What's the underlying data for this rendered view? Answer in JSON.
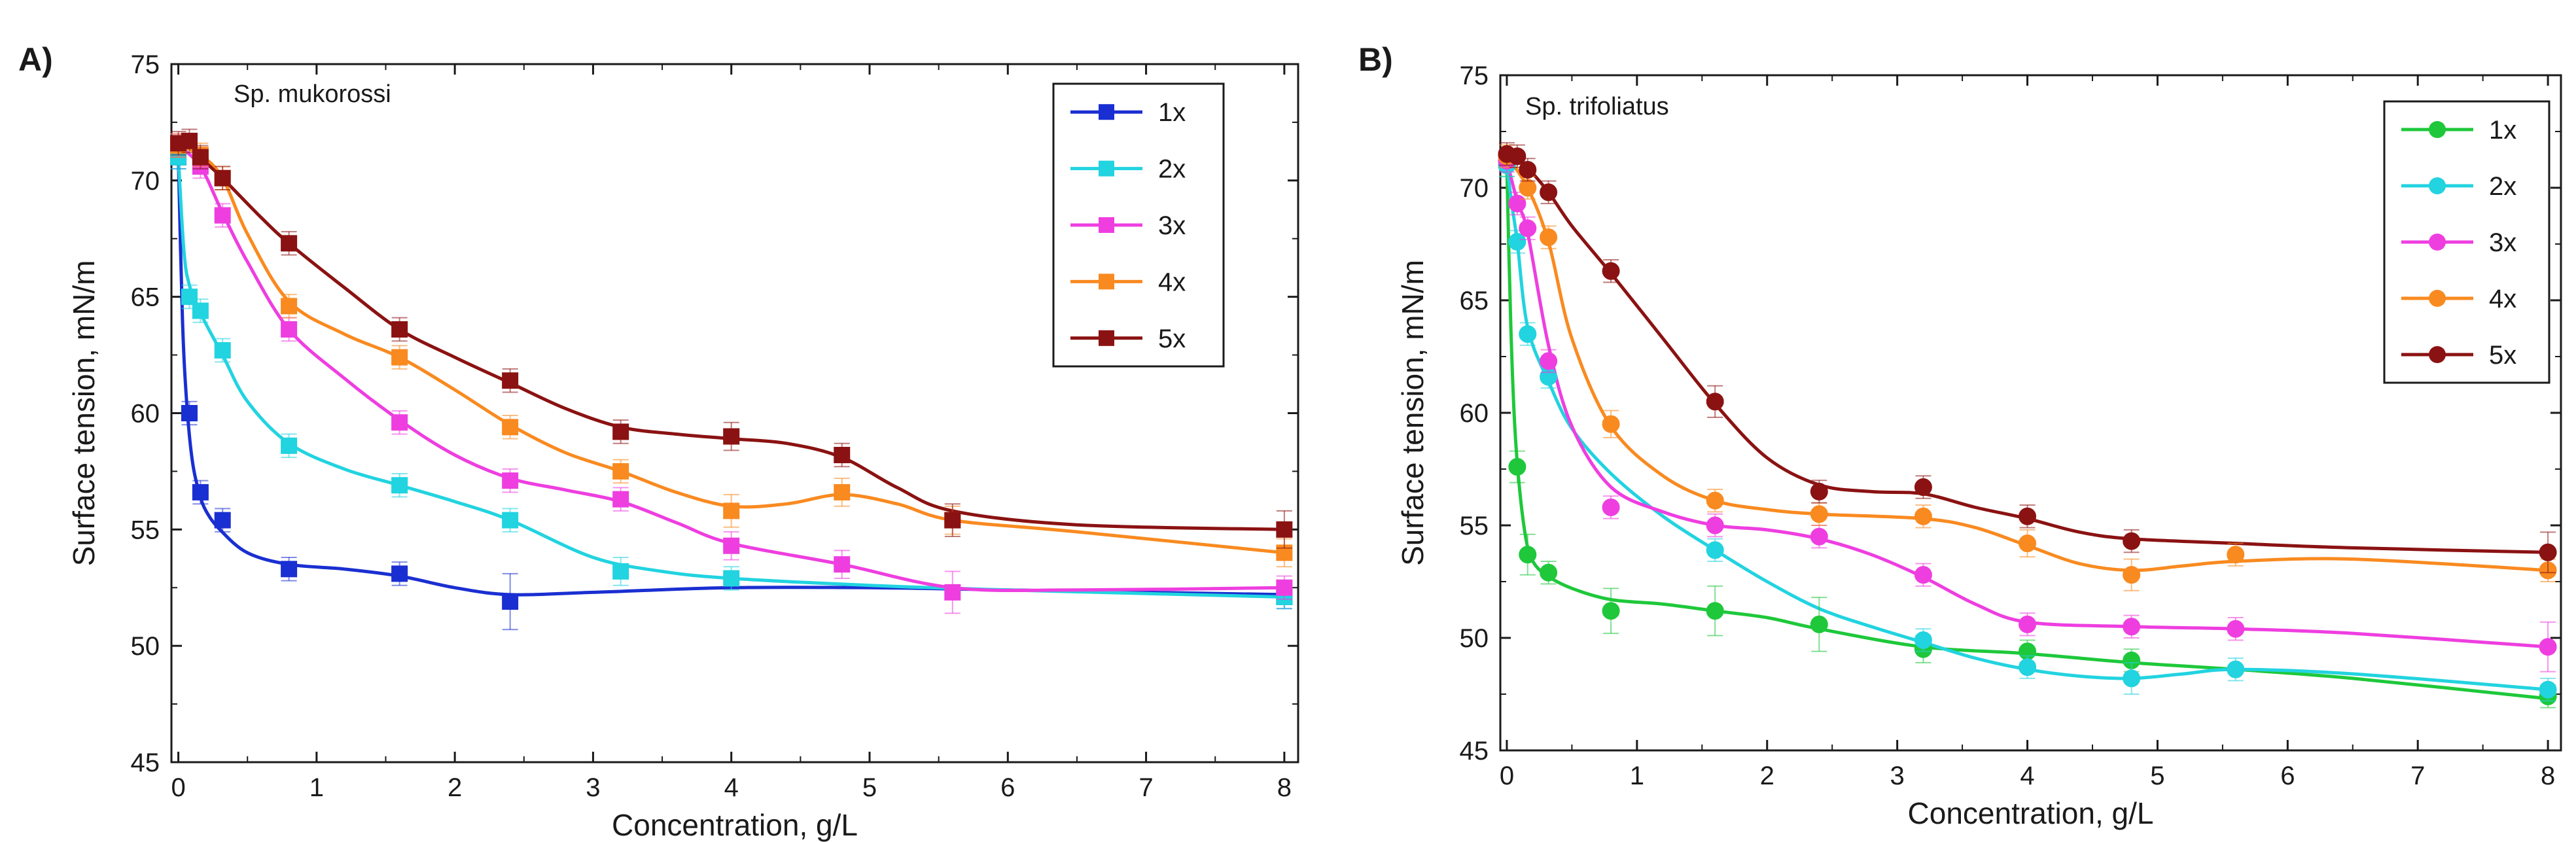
{
  "chart_data": [
    {
      "panel_label": "A)",
      "type": "line",
      "title": "Sp. mukorossi",
      "xlabel": "Concentration, g/L",
      "ylabel": "Surface tension, mN/m",
      "xlim": [
        -0.05,
        8.1
      ],
      "ylim": [
        45,
        75
      ],
      "xticks": [
        0,
        1,
        2,
        3,
        4,
        5,
        6,
        7,
        8
      ],
      "yticks": [
        45,
        50,
        55,
        60,
        65,
        70,
        75
      ],
      "marker": "square",
      "legend_position": "top-right",
      "series": [
        {
          "name": "1x",
          "color": "#1a2fd1",
          "x": [
            0,
            0.08,
            0.16,
            0.32,
            0.8,
            1.6,
            2.4,
            8.0
          ],
          "y": [
            71.0,
            60.0,
            56.6,
            55.4,
            53.3,
            53.1,
            51.9,
            52.1
          ],
          "err": [
            0.5,
            0.5,
            0.5,
            0.5,
            0.5,
            0.5,
            1.2,
            0.5
          ]
        },
        {
          "name": "2x",
          "color": "#22d3e0",
          "x": [
            0,
            0.08,
            0.16,
            0.32,
            0.8,
            1.6,
            2.4,
            3.2,
            4.0,
            8.0
          ],
          "y": [
            71.0,
            65.0,
            64.4,
            62.7,
            58.6,
            56.9,
            55.4,
            53.2,
            52.9,
            52.1
          ],
          "err": [
            0.5,
            0.5,
            0.5,
            0.5,
            0.5,
            0.5,
            0.5,
            0.6,
            0.5,
            0.5
          ]
        },
        {
          "name": "3x",
          "color": "#ee3ee0",
          "x": [
            0,
            0.16,
            0.32,
            0.8,
            1.6,
            2.4,
            3.2,
            4.0,
            4.8,
            5.6,
            8.0
          ],
          "y": [
            71.5,
            70.6,
            68.5,
            63.6,
            59.6,
            57.1,
            56.3,
            54.3,
            53.5,
            52.3,
            52.5
          ],
          "err": [
            0.5,
            0.5,
            0.5,
            0.5,
            0.5,
            0.5,
            0.5,
            0.6,
            0.6,
            0.9,
            0.5
          ]
        },
        {
          "name": "4x",
          "color": "#f98a20",
          "x": [
            0,
            0.16,
            0.32,
            0.8,
            1.6,
            2.4,
            3.2,
            4.0,
            4.8,
            5.6,
            8.0
          ],
          "y": [
            71.5,
            71.1,
            70.1,
            64.6,
            62.4,
            59.4,
            57.5,
            55.8,
            56.6,
            55.4,
            54.0
          ],
          "err": [
            0.5,
            0.5,
            0.5,
            0.5,
            0.5,
            0.5,
            0.5,
            0.7,
            0.6,
            0.6,
            0.6
          ]
        },
        {
          "name": "5x",
          "color": "#8b1212",
          "x": [
            0,
            0.08,
            0.16,
            0.32,
            0.8,
            1.6,
            2.4,
            3.2,
            4.0,
            4.8,
            5.6,
            8.0
          ],
          "y": [
            71.6,
            71.7,
            71.0,
            70.1,
            67.3,
            63.6,
            61.4,
            59.2,
            59.0,
            58.2,
            55.4,
            55.0
          ],
          "err": [
            0.5,
            0.5,
            0.5,
            0.5,
            0.5,
            0.5,
            0.5,
            0.5,
            0.6,
            0.5,
            0.7,
            0.8
          ]
        }
      ],
      "curves": [
        {
          "x": [
            0,
            0.03,
            0.06,
            0.1,
            0.15,
            0.2,
            0.3,
            0.5,
            0.8,
            1.2,
            1.6,
            2.0,
            2.4,
            3.0,
            4.0,
            5.0,
            6.0,
            8.0
          ],
          "y": [
            71.0,
            64.0,
            60.5,
            58.0,
            56.6,
            55.8,
            55.0,
            54.0,
            53.5,
            53.3,
            53.0,
            52.5,
            52.2,
            52.3,
            52.5,
            52.5,
            52.4,
            52.2
          ]
        },
        {
          "x": [
            0,
            0.04,
            0.08,
            0.16,
            0.32,
            0.5,
            0.8,
            1.2,
            1.6,
            2.0,
            2.4,
            3.0,
            3.5,
            4.0,
            5.0,
            6.0,
            8.0
          ],
          "y": [
            71.0,
            67.0,
            65.5,
            64.3,
            62.5,
            60.5,
            58.7,
            57.6,
            56.9,
            56.2,
            55.4,
            53.8,
            53.2,
            52.9,
            52.6,
            52.4,
            52.1
          ]
        },
        {
          "x": [
            0,
            0.16,
            0.32,
            0.5,
            0.8,
            1.2,
            1.6,
            2.0,
            2.4,
            2.8,
            3.2,
            3.6,
            4.0,
            4.8,
            5.6,
            6.5,
            8.0
          ],
          "y": [
            71.5,
            70.6,
            68.6,
            66.5,
            63.6,
            61.5,
            59.7,
            58.2,
            57.2,
            56.7,
            56.2,
            55.3,
            54.4,
            53.5,
            52.5,
            52.4,
            52.5
          ]
        },
        {
          "x": [
            0,
            0.16,
            0.32,
            0.5,
            0.8,
            1.2,
            1.6,
            2.0,
            2.4,
            2.8,
            3.2,
            3.6,
            4.0,
            4.4,
            4.8,
            5.2,
            5.6,
            6.5,
            8.0
          ],
          "y": [
            71.5,
            71.1,
            70.1,
            67.7,
            64.8,
            63.4,
            62.4,
            61.0,
            59.5,
            58.3,
            57.5,
            56.6,
            56.0,
            56.1,
            56.5,
            56.1,
            55.4,
            54.9,
            54.0
          ]
        },
        {
          "x": [
            0,
            0.08,
            0.16,
            0.32,
            0.6,
            0.8,
            1.2,
            1.6,
            2.0,
            2.4,
            2.8,
            3.2,
            3.6,
            4.0,
            4.4,
            4.8,
            5.2,
            5.6,
            6.5,
            8.0
          ],
          "y": [
            71.6,
            71.7,
            71.0,
            70.1,
            68.4,
            67.3,
            65.4,
            63.6,
            62.4,
            61.3,
            60.2,
            59.4,
            59.1,
            58.9,
            58.7,
            58.1,
            56.8,
            55.8,
            55.2,
            55.0
          ]
        }
      ]
    },
    {
      "panel_label": "B)",
      "type": "line",
      "title": "Sp. trifoliatus",
      "xlabel": "Concentration, g/L",
      "ylabel": "Surface tension, mN/m",
      "xlim": [
        -0.05,
        8.1
      ],
      "ylim": [
        45,
        75
      ],
      "xticks": [
        0,
        1,
        2,
        3,
        4,
        5,
        6,
        7,
        8
      ],
      "yticks": [
        45,
        50,
        55,
        60,
        65,
        70,
        75
      ],
      "marker": "circle",
      "legend_position": "top-right",
      "series": [
        {
          "name": "1x",
          "color": "#1ec83a",
          "x": [
            0,
            0.08,
            0.16,
            0.32,
            0.8,
            1.6,
            2.4,
            3.2,
            4.0,
            4.8,
            8.0
          ],
          "y": [
            71.0,
            57.6,
            53.7,
            52.9,
            51.2,
            51.2,
            50.6,
            49.5,
            49.4,
            49.0,
            47.4
          ],
          "err": [
            0.5,
            0.7,
            0.9,
            0.5,
            1.0,
            1.1,
            1.2,
            0.6,
            0.5,
            0.5,
            0.5
          ]
        },
        {
          "name": "2x",
          "color": "#22d3e0",
          "x": [
            0,
            0.08,
            0.16,
            0.32,
            1.6,
            3.2,
            4.0,
            4.8,
            5.6,
            8.0
          ],
          "y": [
            71.0,
            67.6,
            63.5,
            61.6,
            53.9,
            49.9,
            48.7,
            48.2,
            48.6,
            47.7
          ],
          "err": [
            0.5,
            0.5,
            0.5,
            0.5,
            0.5,
            0.5,
            0.5,
            0.7,
            0.5,
            0.5
          ]
        },
        {
          "name": "3x",
          "color": "#ee3ee0",
          "x": [
            0,
            0.08,
            0.16,
            0.32,
            0.8,
            1.6,
            2.4,
            3.2,
            4.0,
            4.8,
            5.6,
            8.0
          ],
          "y": [
            71.2,
            69.3,
            68.2,
            62.3,
            55.8,
            55.0,
            54.5,
            52.8,
            50.6,
            50.5,
            50.4,
            49.6
          ],
          "err": [
            0.5,
            0.5,
            0.5,
            0.5,
            0.5,
            0.5,
            0.5,
            0.5,
            0.5,
            0.5,
            0.5,
            1.1
          ]
        },
        {
          "name": "4x",
          "color": "#f98a20",
          "x": [
            0,
            0.16,
            0.32,
            0.8,
            1.6,
            2.4,
            3.2,
            4.0,
            4.8,
            5.6,
            8.0
          ],
          "y": [
            71.4,
            70.0,
            67.8,
            59.5,
            56.1,
            55.5,
            55.4,
            54.2,
            52.8,
            53.7,
            53.0
          ],
          "err": [
            0.5,
            0.5,
            0.5,
            0.6,
            0.5,
            0.5,
            0.5,
            0.6,
            0.7,
            0.5,
            0.5
          ]
        },
        {
          "name": "5x",
          "color": "#8b1212",
          "x": [
            0,
            0.08,
            0.16,
            0.32,
            0.8,
            1.6,
            2.4,
            3.2,
            4.0,
            4.8,
            8.0
          ],
          "y": [
            71.5,
            71.4,
            70.8,
            69.8,
            66.3,
            60.5,
            56.5,
            56.7,
            55.4,
            54.3,
            53.8
          ],
          "err": [
            0.5,
            0.5,
            0.5,
            0.5,
            0.5,
            0.7,
            0.5,
            0.5,
            0.5,
            0.5,
            0.9
          ]
        }
      ],
      "curves": [
        {
          "x": [
            0,
            0.03,
            0.06,
            0.1,
            0.15,
            0.2,
            0.3,
            0.5,
            0.8,
            1.2,
            1.6,
            2.0,
            2.4,
            3.2,
            4.0,
            4.8,
            5.6,
            6.5,
            8.0
          ],
          "y": [
            71.0,
            64.0,
            59.5,
            56.5,
            54.3,
            53.4,
            52.8,
            52.2,
            51.7,
            51.5,
            51.2,
            50.9,
            50.4,
            49.6,
            49.3,
            48.9,
            48.6,
            48.2,
            47.3
          ]
        },
        {
          "x": [
            0,
            0.04,
            0.08,
            0.16,
            0.32,
            0.5,
            0.8,
            1.2,
            1.6,
            2.0,
            2.4,
            2.8,
            3.2,
            3.6,
            4.0,
            4.4,
            4.8,
            5.2,
            5.6,
            6.5,
            8.0
          ],
          "y": [
            71.0,
            69.2,
            67.6,
            63.8,
            61.4,
            59.3,
            57.3,
            55.4,
            53.9,
            52.5,
            51.3,
            50.5,
            49.8,
            49.1,
            48.6,
            48.3,
            48.2,
            48.4,
            48.6,
            48.4,
            47.7
          ]
        },
        {
          "x": [
            0,
            0.08,
            0.16,
            0.32,
            0.5,
            0.8,
            1.2,
            1.6,
            2.0,
            2.4,
            2.8,
            3.2,
            3.6,
            4.0,
            4.8,
            5.6,
            6.5,
            8.0
          ],
          "y": [
            71.2,
            69.4,
            68.0,
            63.0,
            59.4,
            56.7,
            55.6,
            55.0,
            54.8,
            54.4,
            53.7,
            52.7,
            51.5,
            50.7,
            50.5,
            50.4,
            50.2,
            49.6
          ]
        },
        {
          "x": [
            0,
            0.16,
            0.32,
            0.5,
            0.8,
            1.2,
            1.6,
            2.0,
            2.4,
            3.2,
            3.6,
            4.0,
            4.4,
            4.8,
            5.2,
            5.6,
            6.5,
            8.0
          ],
          "y": [
            71.4,
            70.0,
            67.6,
            63.3,
            59.4,
            57.2,
            56.1,
            55.7,
            55.5,
            55.3,
            54.9,
            54.1,
            53.3,
            53.0,
            53.2,
            53.4,
            53.5,
            53.0
          ]
        },
        {
          "x": [
            0,
            0.08,
            0.16,
            0.32,
            0.5,
            0.8,
            1.2,
            1.6,
            2.0,
            2.4,
            2.8,
            3.2,
            3.6,
            4.0,
            4.4,
            4.8,
            5.6,
            6.5,
            8.0
          ],
          "y": [
            71.5,
            71.4,
            70.9,
            69.8,
            68.3,
            66.2,
            63.3,
            60.4,
            58.0,
            56.8,
            56.5,
            56.4,
            55.8,
            55.3,
            54.7,
            54.4,
            54.2,
            54.0,
            53.8
          ]
        }
      ]
    }
  ]
}
